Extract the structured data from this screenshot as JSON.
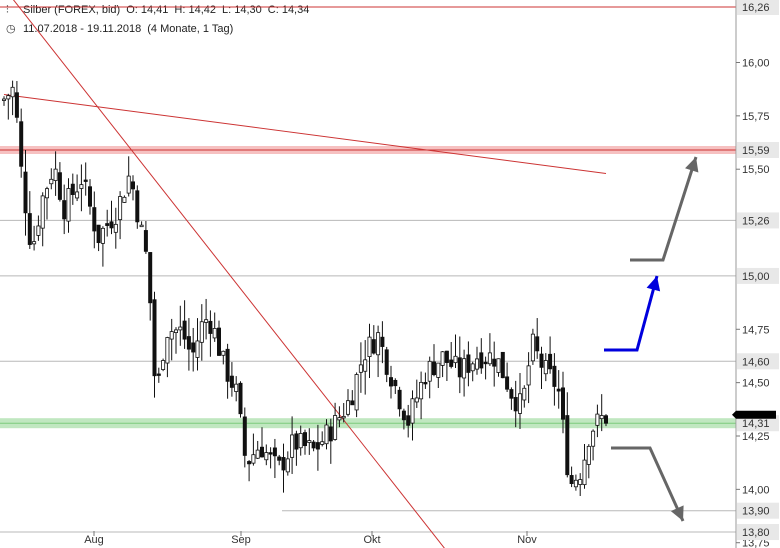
{
  "header": {
    "instrument": "Silber (FOREX, bid)",
    "open": "O: 14,41",
    "high": "H: 14,42",
    "low": "L: 14,30",
    "close": "C: 14,34",
    "range": "11.07.2018 - 19.11.2018",
    "period": "(4 Monate, 1 Tag)"
  },
  "chart_data": {
    "type": "candlestick",
    "x_range": [
      "2018-07-11",
      "2018-11-19"
    ],
    "x_ticks": [
      "Aug",
      "Sep",
      "Okt",
      "Nov"
    ],
    "y_ticks": [
      "16,00",
      "15,75",
      "15,50",
      "14,75",
      "14,50",
      "14,25",
      "14,00",
      "13,75"
    ],
    "ylim": [
      13.72,
      16.3
    ],
    "grid": false,
    "last_candle": {
      "open": 14.41,
      "high": 14.42,
      "low": 14.3,
      "close": 14.34
    },
    "levels": [
      {
        "value": 16.26,
        "label": "16,26",
        "style": "resistance-red"
      },
      {
        "value": 15.59,
        "label": "15,59",
        "style": "resistance-red-band"
      },
      {
        "value": 15.26,
        "label": "15,26",
        "style": "gray"
      },
      {
        "value": 15.0,
        "label": "15,00",
        "style": "gray"
      },
      {
        "value": 14.6,
        "label": "14,60",
        "style": "gray"
      },
      {
        "value": 14.31,
        "label": "14,31",
        "style": "support-green-band"
      },
      {
        "value": 13.9,
        "label": "13,90",
        "style": "gray"
      },
      {
        "value": 13.8,
        "label": "13,80",
        "style": "gray"
      }
    ],
    "trendlines": [
      {
        "from": [
          "2018-07-11",
          15.85
        ],
        "to": [
          "2018-11-19",
          15.48
        ],
        "color": "#cc3333"
      },
      {
        "from": [
          "2018-07-11",
          16.35
        ],
        "to": [
          "2018-10-15",
          13.72
        ],
        "color": "#cc3333"
      }
    ],
    "colors": {
      "resistance": "#cc3333",
      "support_band": "#b9e4b9",
      "arrow_blue": "#0000dd",
      "arrow_gray": "#666666"
    }
  }
}
